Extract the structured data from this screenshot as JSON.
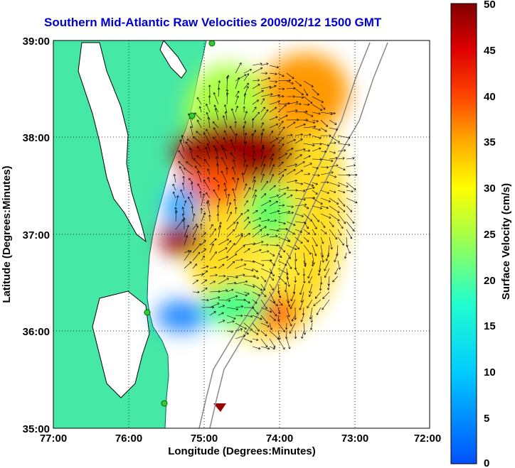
{
  "title": "Southern Mid-Atlantic Raw Velocities 2009/02/12 1500 GMT",
  "axes": {
    "xlabel": "Longitude (Degrees:Minutes)",
    "ylabel": "Latitude (Degrees:Minutes)",
    "xticks": [
      "77:00",
      "76:00",
      "75:00",
      "74:00",
      "73:00",
      "72:00"
    ],
    "yticks": [
      "39:00",
      "38:00",
      "37:00",
      "36:00",
      "35:00"
    ],
    "xlim": [
      -77,
      -72
    ],
    "ylim": [
      35,
      39
    ]
  },
  "colorbar": {
    "label": "Surface Velocity (cm/s)",
    "ticks": [
      "50",
      "45",
      "40",
      "35",
      "30",
      "25",
      "20",
      "15",
      "10",
      "5",
      "0"
    ],
    "range": [
      0,
      50
    ]
  },
  "colors": {
    "land": "#46e8a6",
    "ocean": "#ffffff",
    "title": "#0000cc",
    "grid": "#000000"
  },
  "chart_data": {
    "type": "heatmap",
    "title": "Southern Mid-Atlantic Raw Velocities 2009/02/12 1500 GMT",
    "xlabel": "Longitude (Degrees:Minutes)",
    "ylabel": "Latitude (Degrees:Minutes)",
    "colorbar_label": "Surface Velocity (cm/s)",
    "colorbar_range": [
      0,
      50
    ],
    "grid": true,
    "regions": [
      {
        "name": "",
        "lon": -74.8,
        "lat": 38.0,
        "speed": 48
      },
      {
        "name": "",
        "lon": -75.3,
        "lat": 37.0,
        "speed": 47
      },
      {
        "name": "",
        "lon": -74.3,
        "lat": 37.5,
        "speed": 35
      },
      {
        "name": "",
        "lon": -73.9,
        "lat": 38.5,
        "speed": 40
      },
      {
        "name": "",
        "lon": -75.3,
        "lat": 36.1,
        "speed": 10
      },
      {
        "name": "",
        "lon": -75.4,
        "lat": 37.4,
        "speed": 12
      },
      {
        "name": "",
        "lon": -74.1,
        "lat": 36.5,
        "speed": 22
      },
      {
        "name": "",
        "lon": -74.6,
        "lat": 35.2,
        "speed": 50
      }
    ]
  }
}
